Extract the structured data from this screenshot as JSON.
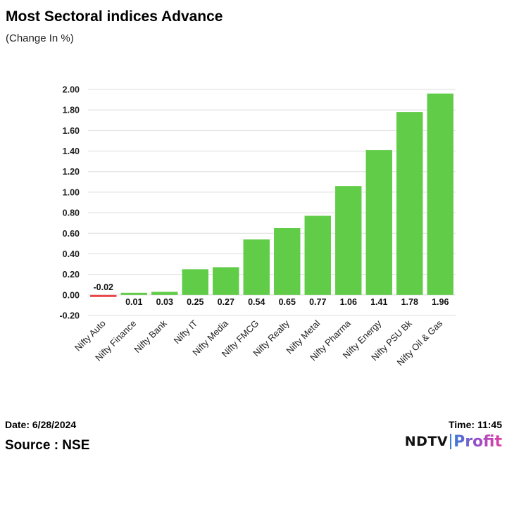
{
  "header": {
    "title": "Most Sectoral indices Advance",
    "subtitle": "(Change In %)"
  },
  "footer": {
    "date": "Date: 6/28/2024",
    "time": "Time: 11:45",
    "source": "Source : NSE",
    "logo_ndtv": "NDTV",
    "logo_profit": "Profit"
  },
  "colors": {
    "positive": "#61cc47",
    "negative": "#e8474a",
    "grid": "#dddddd"
  },
  "chart_data": {
    "type": "bar",
    "title": "Most Sectoral indices Advance",
    "subtitle": "(Change In %)",
    "categories": [
      "Nifty Auto",
      "Nifty Finance",
      "Nifty Bank",
      "Nifty IT",
      "Nifty Media",
      "Nifty FMCG",
      "Nifty Realty",
      "Nifty Metal",
      "Nifty Pharma",
      "Nifty Energy",
      "Nifty PSU Bk",
      "Nifty Oil & Gas"
    ],
    "values": [
      -0.02,
      0.01,
      0.03,
      0.25,
      0.27,
      0.54,
      0.65,
      0.77,
      1.06,
      1.41,
      1.78,
      1.96
    ],
    "data_labels": [
      "-0.02",
      "0.01",
      "0.03",
      "0.25",
      "0.27",
      "0.54",
      "0.65",
      "0.77",
      "1.06",
      "1.41",
      "1.78",
      "1.96"
    ],
    "yticks": [
      -0.2,
      0.0,
      0.2,
      0.4,
      0.6,
      0.8,
      1.0,
      1.2,
      1.4,
      1.6,
      1.8,
      2.0
    ],
    "ytick_labels": [
      "-0.20",
      "0.00",
      "0.20",
      "0.40",
      "0.60",
      "0.80",
      "1.00",
      "1.20",
      "1.40",
      "1.60",
      "1.80",
      "2.00"
    ],
    "ylim": [
      -0.2,
      2.0
    ],
    "xlabel": "",
    "ylabel": "",
    "grid": true,
    "legend": "none"
  }
}
